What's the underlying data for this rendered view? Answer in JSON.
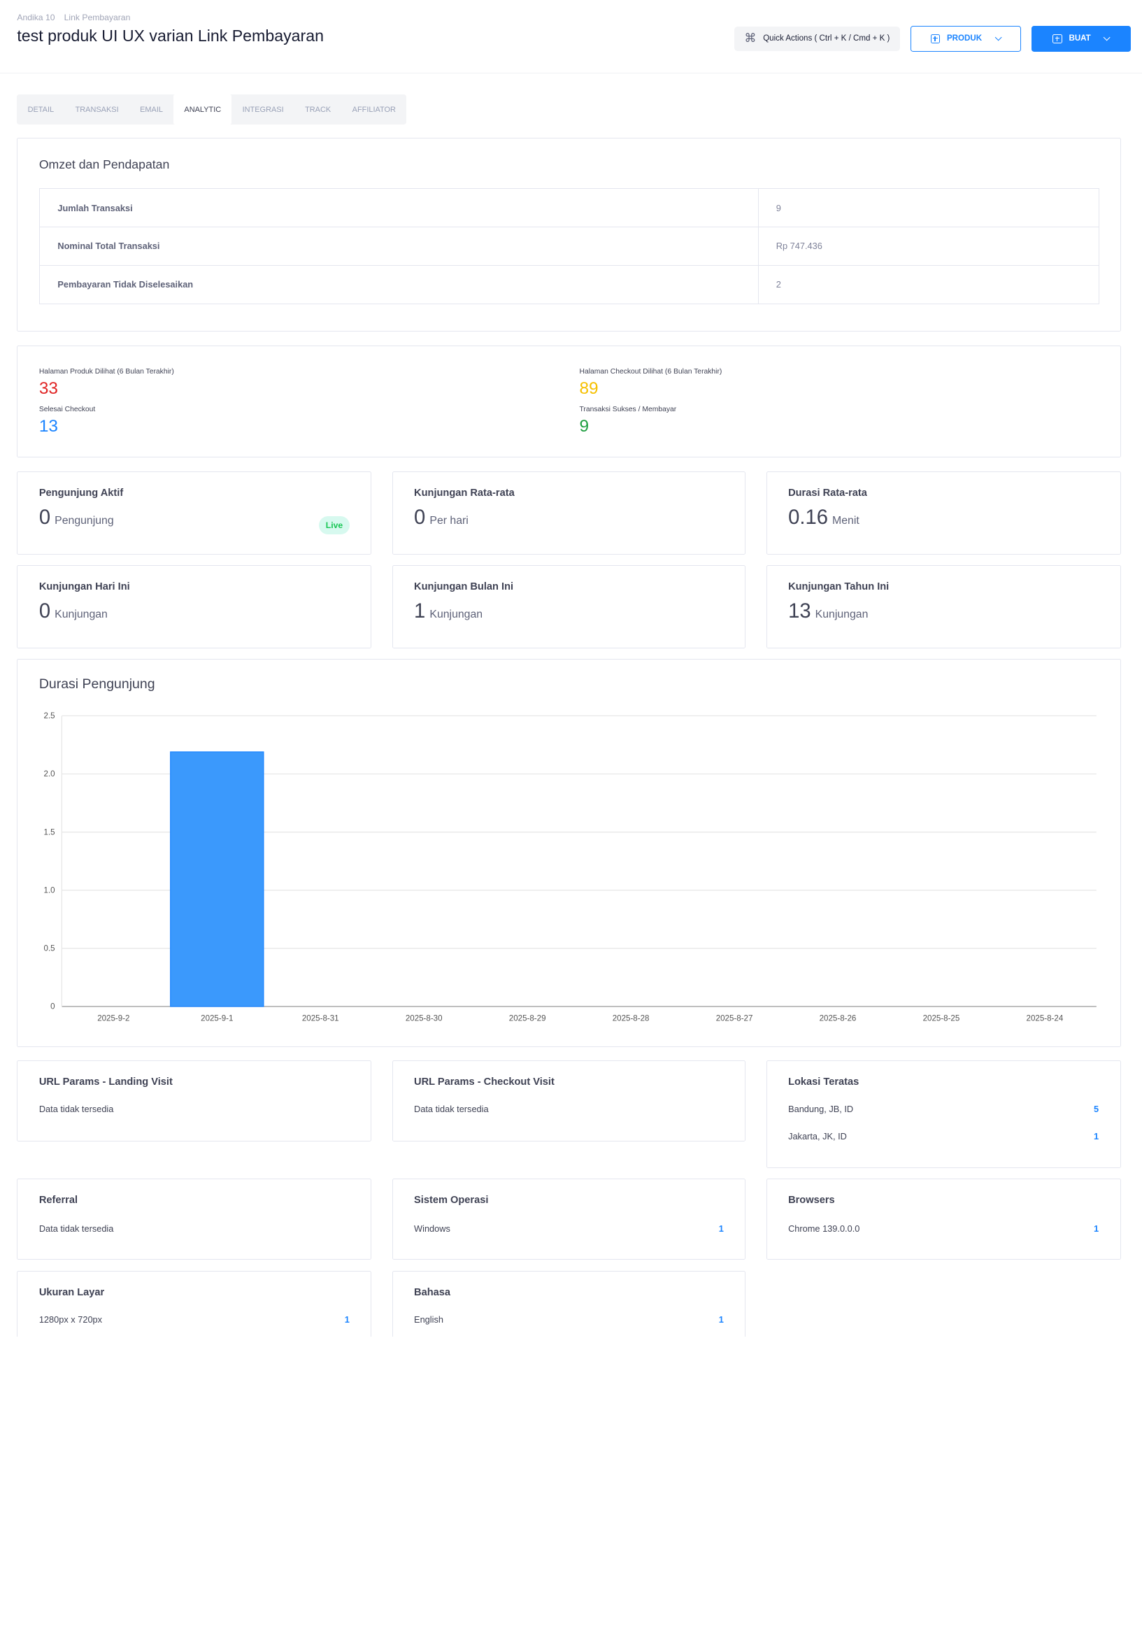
{
  "breadcrumb": [
    "Andika 10",
    "Link Pembayaran"
  ],
  "title": "test produk UI UX varian Link Pembayaran",
  "actions": {
    "quick_label": "Quick Actions ( Ctrl + K / Cmd + K )",
    "produk_label": "PRODUK",
    "buat_label": "BUAT"
  },
  "tabs": [
    "DETAIL",
    "TRANSAKSI",
    "EMAIL",
    "ANALYTIC",
    "INTEGRASI",
    "TRACK",
    "AFFILIATOR"
  ],
  "active_tab": "ANALYTIC",
  "omzet": {
    "title": "Omzet dan Pendapatan",
    "rows": [
      {
        "label": "Jumlah Transaksi",
        "value": "9"
      },
      {
        "label": "Nominal Total Transaksi",
        "value": "Rp 747.436"
      },
      {
        "label": "Pembayaran Tidak Diselesaikan",
        "value": "2"
      }
    ]
  },
  "funnel": {
    "produk_label": "Halaman Produk Dilihat (6 Bulan Terakhir)",
    "produk_value": "33",
    "checkout_label": "Halaman Checkout Dilihat (6 Bulan Terakhir)",
    "checkout_value": "89",
    "selesai_label": "Selesai Checkout",
    "selesai_value": "13",
    "sukses_label": "Transaksi Sukses / Membayar",
    "sukses_value": "9"
  },
  "stats": {
    "aktif": {
      "title": "Pengunjung Aktif",
      "value": "0",
      "unit": "Pengunjung",
      "badge": "Live"
    },
    "rata": {
      "title": "Kunjungan Rata-rata",
      "value": "0",
      "unit": "Per hari"
    },
    "durasi": {
      "title": "Durasi Rata-rata",
      "value": "0.16",
      "unit": "Menit"
    },
    "hari": {
      "title": "Kunjungan Hari Ini",
      "value": "0",
      "unit": "Kunjungan"
    },
    "bulan": {
      "title": "Kunjungan Bulan Ini",
      "value": "1",
      "unit": "Kunjungan"
    },
    "tahun": {
      "title": "Kunjungan Tahun Ini",
      "value": "13",
      "unit": "Kunjungan"
    }
  },
  "chart_data": {
    "type": "bar",
    "title": "Durasi Pengunjung",
    "categories": [
      "2025-9-2",
      "2025-9-1",
      "2025-8-31",
      "2025-8-30",
      "2025-8-29",
      "2025-8-28",
      "2025-8-27",
      "2025-8-26",
      "2025-8-25",
      "2025-8-24"
    ],
    "values": [
      0,
      2.19,
      0,
      0,
      0,
      0,
      0,
      0,
      0,
      0
    ],
    "ylim": [
      0,
      2.5
    ],
    "yticks": [
      "0",
      "0.5",
      "1.0",
      "1.5",
      "2.0",
      "2.5"
    ],
    "grid": true,
    "bar_color": "#1b84ff"
  },
  "url_landing": {
    "title": "URL Params - Landing Visit",
    "empty": "Data tidak tersedia"
  },
  "url_checkout": {
    "title": "URL Params - Checkout Visit",
    "empty": "Data tidak tersedia"
  },
  "lokasi": {
    "title": "Lokasi Teratas",
    "items": [
      {
        "name": "Bandung, JB, ID",
        "count": "5"
      },
      {
        "name": "Jakarta, JK, ID",
        "count": "1"
      }
    ]
  },
  "referral": {
    "title": "Referral",
    "empty": "Data tidak tersedia"
  },
  "os": {
    "title": "Sistem Operasi",
    "items": [
      {
        "name": "Windows",
        "count": "1"
      }
    ]
  },
  "browsers": {
    "title": "Browsers",
    "items": [
      {
        "name": "Chrome 139.0.0.0",
        "count": "1"
      }
    ]
  },
  "layar": {
    "title": "Ukuran Layar",
    "items": [
      {
        "name": "1280px x 720px",
        "count": "1"
      }
    ]
  },
  "bahasa": {
    "title": "Bahasa",
    "items": [
      {
        "name": "English",
        "count": "1"
      }
    ]
  },
  "colors": {
    "primary": "#1b84ff",
    "red": "#e02424",
    "yellow": "#f6c000",
    "green": "#1e9e40",
    "blue": "#1b84ff"
  }
}
